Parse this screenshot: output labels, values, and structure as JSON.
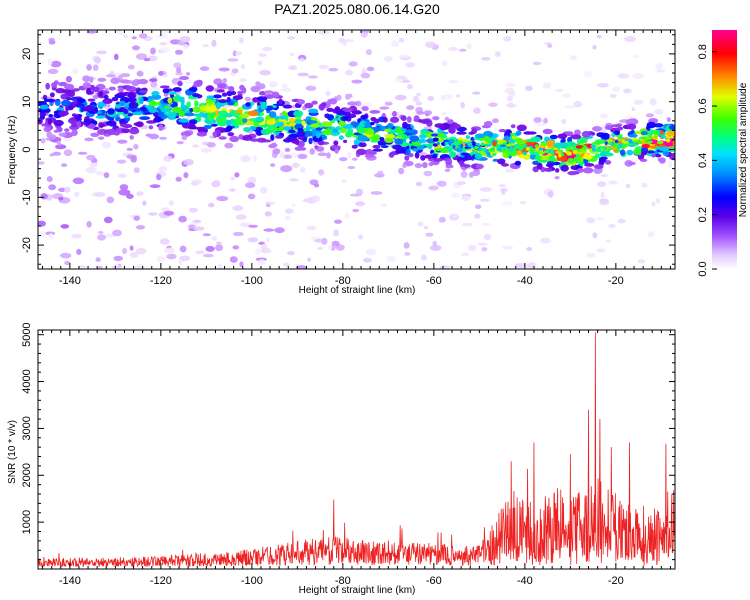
{
  "page_title": "PAZ1.2025.080.06.14.G20",
  "chart_data": [
    {
      "type": "heatmap",
      "xlabel": "Height of straight line (km)",
      "ylabel": "Frequency (Hz)",
      "xlim": [
        -147,
        -7
      ],
      "ylim": [
        -25,
        25
      ],
      "x_ticks": [
        -140,
        -120,
        -100,
        -80,
        -60,
        -40,
        -20
      ],
      "y_ticks": [
        -20,
        -10,
        0,
        10,
        20
      ],
      "colorbar": {
        "label": "Normalized spectral amplitude",
        "range": [
          0,
          0.88
        ],
        "ticks": [
          0.0,
          0.2,
          0.4,
          0.6,
          0.8
        ],
        "colormap": [
          "#ffffff",
          "#e8d2ff",
          "#b060ff",
          "#6a00e0",
          "#0000ff",
          "#00c8ff",
          "#00ff80",
          "#40ff00",
          "#ffff00",
          "#ff8000",
          "#ff0000",
          "#ff00a0"
        ]
      },
      "ridge": {
        "description_points_x": [
          -145,
          -130,
          -118,
          -108,
          -100,
          -90,
          -80,
          -70,
          -60,
          -50,
          -40,
          -30,
          -20,
          -12,
          -7
        ],
        "description_points_y": [
          9,
          8,
          9.5,
          8,
          7,
          5.5,
          4.5,
          3,
          1.5,
          0.5,
          0.5,
          -1,
          1,
          2,
          2
        ],
        "peak_amplitudes": [
          0.25,
          0.3,
          0.45,
          0.5,
          0.55,
          0.5,
          0.45,
          0.45,
          0.5,
          0.55,
          0.7,
          0.75,
          0.6,
          0.8,
          0.85
        ]
      },
      "grid": false
    },
    {
      "type": "line",
      "xlabel": "Height of straight line (km)",
      "ylabel": "SNR (10 * v/v)",
      "xlim": [
        -147,
        -7
      ],
      "ylim": [
        0,
        5100
      ],
      "x_ticks": [
        -140,
        -120,
        -100,
        -80,
        -60,
        -40,
        -20
      ],
      "y_ticks": [
        1000,
        2000,
        3000,
        4000,
        5000
      ],
      "color": "#ee2222",
      "envelope_x": [
        -147,
        -130,
        -115,
        -105,
        -95,
        -88,
        -82,
        -75,
        -68,
        -60,
        -52,
        -48,
        -45,
        -42,
        -38,
        -34,
        -30,
        -26,
        -24,
        -22,
        -18,
        -14,
        -10,
        -7
      ],
      "envelope_y": [
        200,
        220,
        260,
        320,
        450,
        550,
        600,
        550,
        520,
        480,
        400,
        700,
        1200,
        1500,
        1300,
        1600,
        1400,
        1500,
        1700,
        1500,
        1300,
        1000,
        1300,
        1800
      ],
      "spikes_x": [
        -82,
        -43,
        -38,
        -30,
        -26,
        -24.5,
        -23.5,
        -21,
        -17
      ],
      "spikes_y": [
        1480,
        2300,
        2700,
        2450,
        3400,
        5050,
        3200,
        2600,
        2700
      ],
      "grid": false
    }
  ]
}
